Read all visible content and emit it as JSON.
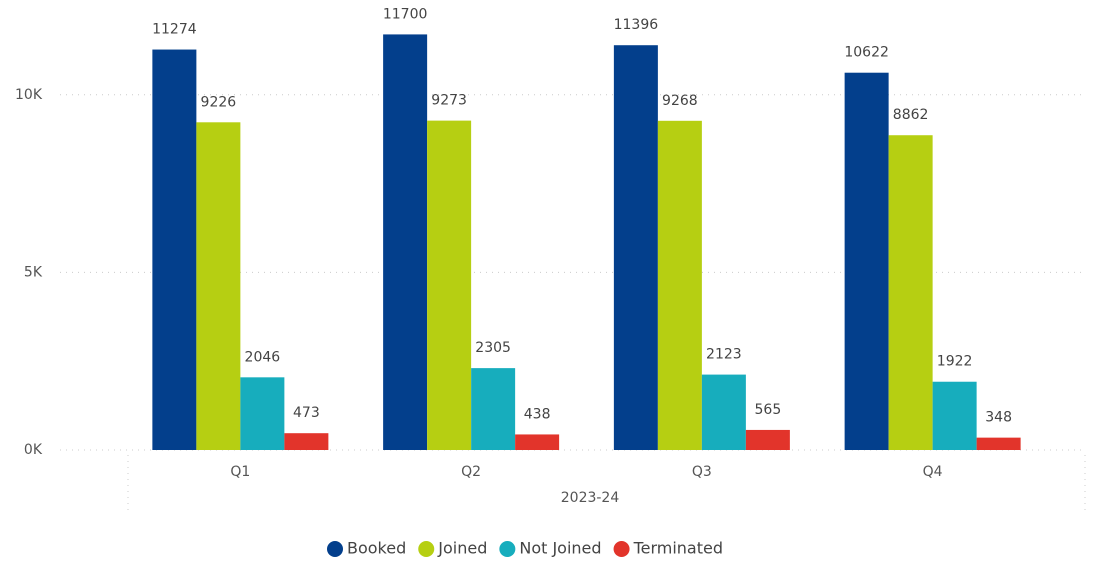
{
  "chart_data": {
    "type": "bar",
    "categories": [
      "Q1",
      "Q2",
      "Q3",
      "Q4"
    ],
    "x_label": "2023-24",
    "series": [
      {
        "name": "Booked",
        "color": "#033f8c",
        "values": [
          11274,
          11700,
          11396,
          10622
        ]
      },
      {
        "name": "Joined",
        "color": "#b6cf12",
        "values": [
          9226,
          9273,
          9268,
          8862
        ]
      },
      {
        "name": "Not Joined",
        "color": "#17adbd",
        "values": [
          2046,
          2305,
          2123,
          1922
        ]
      },
      {
        "name": "Terminated",
        "color": "#e2342b",
        "values": [
          473,
          438,
          565,
          348
        ]
      }
    ],
    "ylim": [
      0,
      12500
    ],
    "yticks": [
      {
        "value": 0,
        "label": "0K"
      },
      {
        "value": 5000,
        "label": "5K"
      },
      {
        "value": 10000,
        "label": "10K"
      }
    ],
    "grid": true
  }
}
